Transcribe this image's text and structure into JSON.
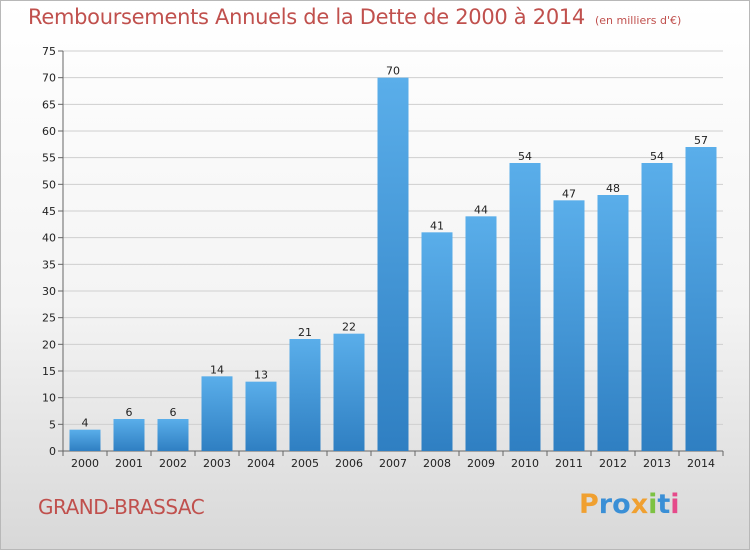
{
  "title": "Remboursements Annuels de la Dette de 2000 à 2014",
  "subtitle": "(en milliers d'€)",
  "commune": "GRAND-BRASSAC",
  "logo": {
    "letters": [
      "P",
      "r",
      "o",
      "x",
      "i",
      "t",
      "i"
    ],
    "colors": [
      "#f0a030",
      "#3a8fd6",
      "#3a8fd6",
      "#f0a030",
      "#7dc243",
      "#3a8fd6",
      "#e54a8a"
    ]
  },
  "colors": {
    "bar": "#4a9fe0",
    "bar_dark": "#2f7fc2",
    "text_accent": "#c0504d"
  },
  "chart_data": {
    "type": "bar",
    "categories": [
      "2000",
      "2001",
      "2002",
      "2003",
      "2004",
      "2005",
      "2006",
      "2007",
      "2008",
      "2009",
      "2010",
      "2011",
      "2012",
      "2013",
      "2014"
    ],
    "values": [
      4,
      6,
      6,
      14,
      13,
      21,
      22,
      70,
      41,
      44,
      54,
      47,
      48,
      54,
      57
    ],
    "ylim": [
      0,
      75
    ],
    "yticks": [
      0,
      5,
      10,
      15,
      20,
      25,
      30,
      35,
      40,
      45,
      50,
      55,
      60,
      65,
      70,
      75
    ],
    "grid": true
  }
}
